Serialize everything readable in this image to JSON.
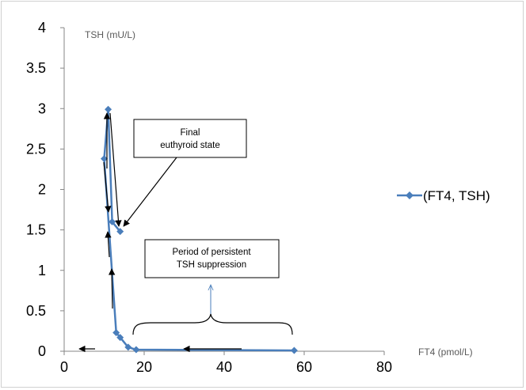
{
  "chart_data": {
    "type": "scatter",
    "xlabel": "FT4 (pmol/L)",
    "ylabel": "TSH (mU/L)",
    "xlim": [
      0,
      80
    ],
    "ylim": [
      0,
      4
    ],
    "x_ticks": [
      "0",
      "20",
      "40",
      "60",
      "80"
    ],
    "y_ticks": [
      "0",
      "0.5",
      "1",
      "1.5",
      "2",
      "2.5",
      "3",
      "3.5",
      "4"
    ],
    "grid": false,
    "legend_position": "right",
    "series": [
      {
        "name": "(FT4, TSH)",
        "color": "#4a7ebb",
        "marker": "diamond",
        "points": [
          {
            "x": 57.5,
            "y": 0.01
          },
          {
            "x": 18,
            "y": 0.02
          },
          {
            "x": 16,
            "y": 0.05
          },
          {
            "x": 14,
            "y": 0.17
          },
          {
            "x": 13,
            "y": 0.23
          },
          {
            "x": 10,
            "y": 2.38
          },
          {
            "x": 11,
            "y": 2.99
          },
          {
            "x": 12,
            "y": 1.6
          },
          {
            "x": 14,
            "y": 1.48
          }
        ]
      }
    ],
    "annotations": [
      {
        "label": "Final euthyroid state",
        "lines": [
          "Final",
          "euthyroid state"
        ]
      },
      {
        "label": "Period of persistent TSH suppression",
        "lines": [
          "Period of persistent",
          "TSH suppression"
        ]
      }
    ]
  }
}
